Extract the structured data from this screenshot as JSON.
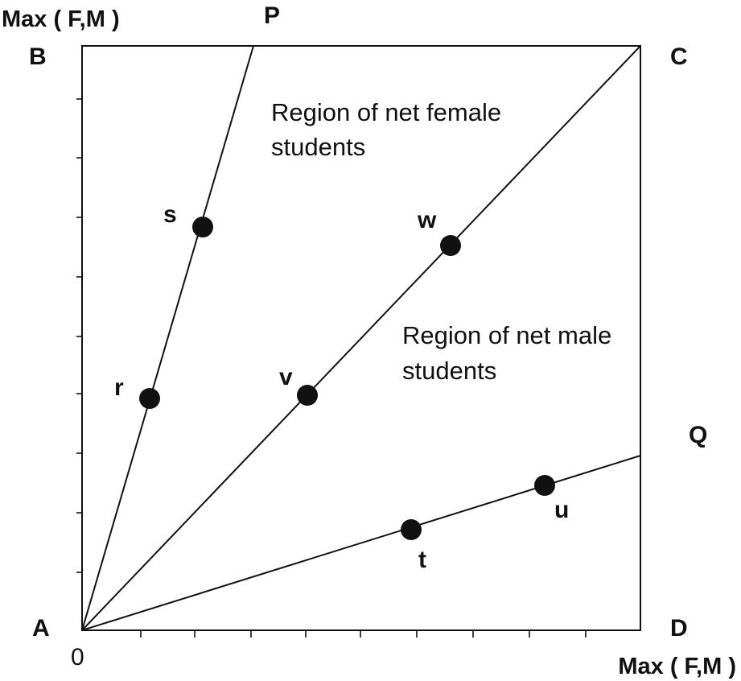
{
  "axes": {
    "y_label": "Max ( F,M )",
    "x_label": "Max ( F,M )",
    "origin_label": "0"
  },
  "corners": {
    "top_left": "B",
    "top_right": "C",
    "bottom_left": "A",
    "bottom_right": "D"
  },
  "rays": {
    "steep_end": "P",
    "shallow_end": "Q"
  },
  "regions": {
    "female": [
      "Region of net female",
      "students"
    ],
    "male": [
      "Region of net male",
      "students"
    ]
  },
  "points": [
    "s",
    "r",
    "w",
    "v",
    "t",
    "u"
  ]
}
